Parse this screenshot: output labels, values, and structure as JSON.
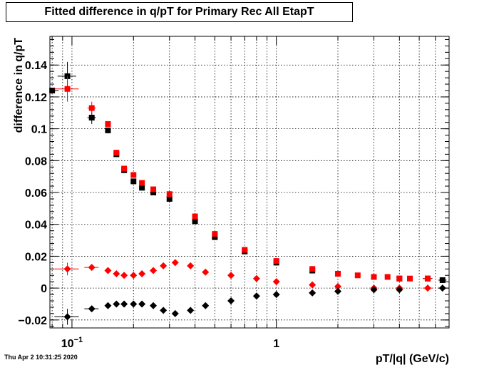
{
  "chart_data": {
    "type": "scatter",
    "title": "Fitted difference in q/pT for Primary Rec All EtapT",
    "xlabel": "pT/|q| (GeV/c)",
    "ylabel": "difference in q/pT",
    "xscale": "log",
    "xlim": [
      0.078,
      7.0
    ],
    "ylim": [
      -0.025,
      0.158
    ],
    "grid": true,
    "xticks": [
      {
        "value": 0.1,
        "base": "10",
        "exp": "−1"
      },
      {
        "value": 1,
        "label": "1"
      }
    ],
    "yticks": [
      -0.02,
      0,
      0.02,
      0.04,
      0.06,
      0.08,
      0.1,
      0.12,
      0.14
    ],
    "ytick_labels": [
      "−0.02",
      "0",
      "0.02",
      "0.04",
      "0.06",
      "0.08",
      "0.1",
      "0.12",
      "0.14"
    ],
    "series": [
      {
        "marker": "square",
        "color": "#000000",
        "x": [
          0.08,
          0.095,
          0.125,
          0.15,
          0.165,
          0.18,
          0.2,
          0.22,
          0.25,
          0.3,
          0.4,
          0.5,
          0.7,
          1.0,
          1.5,
          2.0,
          3.0,
          4.0,
          5.5,
          6.5
        ],
        "y": [
          0.124,
          0.133,
          0.107,
          0.099,
          0.084,
          0.074,
          0.067,
          0.063,
          0.06,
          0.056,
          0.042,
          0.032,
          0.023,
          0.016,
          0.011,
          0.009,
          0.007,
          0.006,
          0.006,
          0.005
        ],
        "xerr": [
          0.006,
          0.01,
          0.006,
          0.003,
          0.003,
          0.003,
          0.003,
          0.003,
          0.003,
          0.005,
          0.005,
          0.005,
          0.005,
          0.01,
          0.015,
          0.02,
          0.03,
          0.04,
          0.3,
          0.3
        ],
        "yerr": [
          0,
          0.009,
          0.004,
          0,
          0,
          0,
          0,
          0,
          0,
          0,
          0,
          0,
          0,
          0,
          0,
          0,
          0,
          0,
          0,
          0
        ]
      },
      {
        "marker": "square",
        "color": "#ff0000",
        "x": [
          0.095,
          0.125,
          0.15,
          0.165,
          0.18,
          0.2,
          0.22,
          0.25,
          0.3,
          0.4,
          0.5,
          0.7,
          1.0,
          1.5,
          2.0,
          2.5,
          3.0,
          3.5,
          4.0,
          4.5,
          5.5
        ],
        "y": [
          0.125,
          0.113,
          0.103,
          0.085,
          0.075,
          0.071,
          0.066,
          0.062,
          0.059,
          0.045,
          0.034,
          0.024,
          0.017,
          0.012,
          0.009,
          0.008,
          0.007,
          0.007,
          0.006,
          0.006,
          0.006
        ],
        "xerr": [
          0.013,
          0.006,
          0.003,
          0.003,
          0.003,
          0.003,
          0.003,
          0.003,
          0.005,
          0.005,
          0.005,
          0.005,
          0.01,
          0.015,
          0.02,
          0.025,
          0.03,
          0.035,
          0.04,
          0.05,
          0.3
        ],
        "yerr": [
          0.008,
          0.004,
          0,
          0,
          0,
          0,
          0,
          0,
          0,
          0,
          0,
          0,
          0,
          0,
          0,
          0,
          0,
          0,
          0,
          0,
          0
        ]
      },
      {
        "marker": "diamond",
        "color": "#ff0000",
        "x": [
          0.095,
          0.125,
          0.15,
          0.165,
          0.18,
          0.2,
          0.22,
          0.25,
          0.28,
          0.32,
          0.38,
          0.45,
          0.6,
          0.8,
          1.0,
          1.5,
          2.0,
          3.0,
          4.0,
          5.5
        ],
        "y": [
          0.012,
          0.013,
          0.011,
          0.009,
          0.008,
          0.008,
          0.009,
          0.011,
          0.014,
          0.016,
          0.014,
          0.01,
          0.008,
          0.006,
          0.004,
          0.002,
          0.001,
          0.0,
          0.0,
          0.0
        ],
        "xerr": [
          0.013,
          0.01,
          0.003,
          0.003,
          0.003,
          0.003,
          0.003,
          0.003,
          0.003,
          0.005,
          0.005,
          0.005,
          0.005,
          0.005,
          0.01,
          0.015,
          0.02,
          0.03,
          0.04,
          0.3
        ],
        "yerr": [
          0.004,
          0,
          0,
          0,
          0,
          0,
          0,
          0,
          0,
          0,
          0,
          0,
          0,
          0,
          0,
          0,
          0,
          0,
          0,
          0
        ]
      },
      {
        "marker": "diamond",
        "color": "#000000",
        "x": [
          0.095,
          0.125,
          0.15,
          0.165,
          0.18,
          0.2,
          0.22,
          0.25,
          0.28,
          0.32,
          0.38,
          0.45,
          0.6,
          0.8,
          1.0,
          1.5,
          2.0,
          3.0,
          4.0,
          6.5
        ],
        "y": [
          -0.018,
          -0.013,
          -0.011,
          -0.01,
          -0.01,
          -0.01,
          -0.01,
          -0.011,
          -0.014,
          -0.016,
          -0.014,
          -0.011,
          -0.008,
          -0.005,
          -0.004,
          -0.003,
          -0.002,
          -0.001,
          -0.001,
          0.0
        ],
        "xerr": [
          0.013,
          0.01,
          0.003,
          0.003,
          0.003,
          0.003,
          0.003,
          0.003,
          0.003,
          0.005,
          0.005,
          0.005,
          0.005,
          0.005,
          0.01,
          0.015,
          0.02,
          0.03,
          0.04,
          0.3
        ],
        "yerr": [
          0.005,
          0,
          0,
          0,
          0,
          0,
          0,
          0,
          0,
          0,
          0,
          0,
          0,
          0,
          0,
          0,
          0,
          0,
          0,
          0
        ]
      }
    ]
  },
  "footer": {
    "date": "Thu Apr  2 10:31:25 2020"
  }
}
